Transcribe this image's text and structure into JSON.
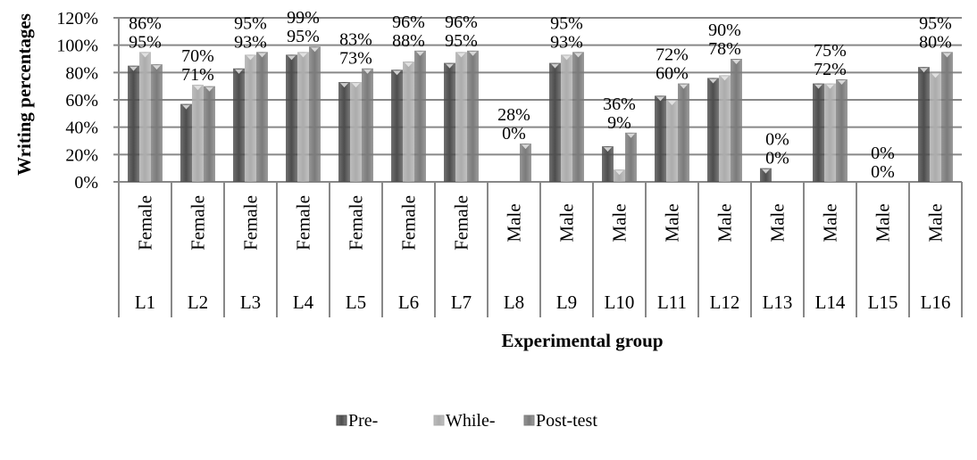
{
  "chart_data": {
    "type": "bar",
    "title": "",
    "xlabel": "Experimental group",
    "ylabel": "Writing percentages",
    "ylim": [
      0,
      120
    ],
    "yticks": [
      "0%",
      "20%",
      "40%",
      "60%",
      "80%",
      "100%",
      "120%"
    ],
    "ytick_values": [
      0,
      20,
      40,
      60,
      80,
      100,
      120
    ],
    "grid": true,
    "legend_position": "bottom",
    "categories": [
      "L1",
      "L2",
      "L3",
      "L4",
      "L5",
      "L6",
      "L7",
      "L8",
      "L9",
      "L10",
      "L11",
      "L12",
      "L13",
      "L14",
      "L15",
      "L16"
    ],
    "gender": [
      "Female",
      "Female",
      "Female",
      "Female",
      "Female",
      "Female",
      "Female",
      "Male",
      "Male",
      "Male",
      "Male",
      "Male",
      "Male",
      "Male",
      "Male",
      "Male"
    ],
    "series": [
      {
        "name": "Pre-",
        "color": "#4d4d4d",
        "labeled": false,
        "values": [
          85,
          57,
          83,
          93,
          73,
          82,
          87,
          0,
          87,
          26,
          63,
          76,
          10,
          72,
          0,
          84
        ]
      },
      {
        "name": "While-",
        "color": "#acacac",
        "labeled": true,
        "values": [
          95,
          71,
          93,
          95,
          73,
          88,
          95,
          0,
          93,
          9,
          60,
          78,
          0,
          72,
          0,
          80
        ]
      },
      {
        "name": "Post-test",
        "color": "#7b7b7b",
        "labeled": true,
        "values": [
          86,
          70,
          95,
          99,
          83,
          96,
          96,
          28,
          95,
          36,
          72,
          90,
          0,
          75,
          0,
          95
        ]
      }
    ]
  }
}
